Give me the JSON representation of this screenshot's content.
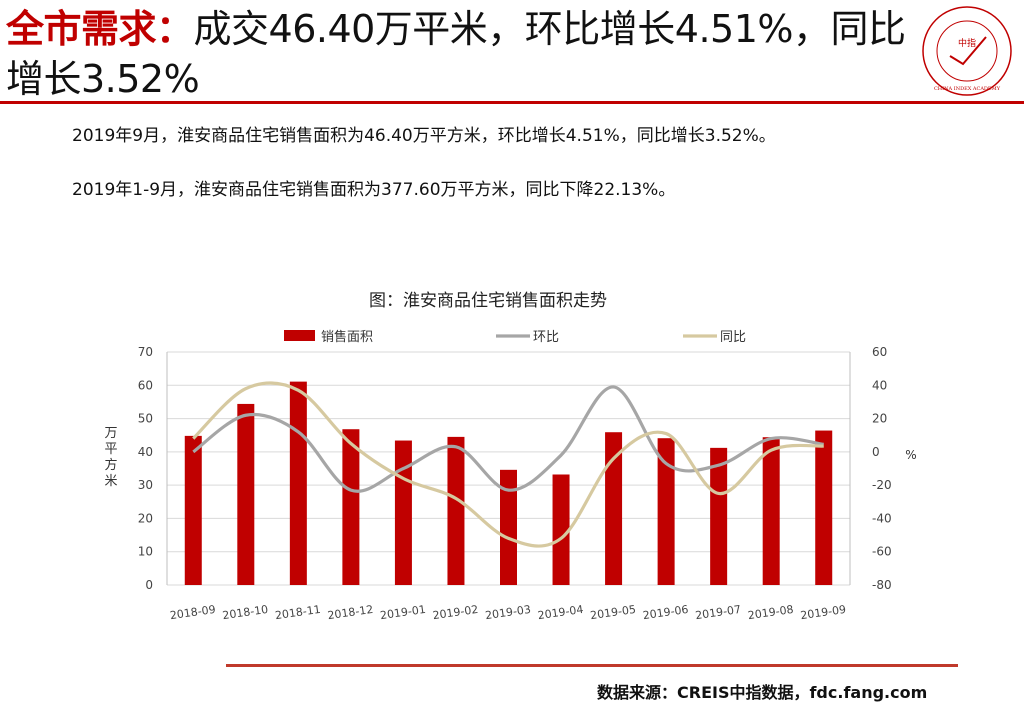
{
  "header": {
    "lead": "全市需求：",
    "rest": "成交46.40万平米，环比增长4.51%，同比增长3.52%"
  },
  "logo": {
    "center_text": "中指",
    "ring_text": "CHINA INDEX ACADEMY"
  },
  "body": {
    "p1": "2019年9月，淮安商品住宅销售面积为46.40万平方米，环比增长4.51%，同比增长3.52%。",
    "p2": "2019年1-9月，淮安商品住宅销售面积为377.60万平方米，同比下降22.13%。"
  },
  "footer": {
    "source": "数据来源：CREIS中指数据，fdc.fang.com"
  },
  "colors": {
    "accent": "#c00000",
    "bar": "#c00000",
    "mom": "#a6a6a6",
    "yoy": "#d6c9a0"
  },
  "chart_data": {
    "type": "bar+line",
    "title": "图：淮安商品住宅销售面积走势",
    "categories": [
      "2018-09",
      "2018-10",
      "2018-11",
      "2018-12",
      "2019-01",
      "2019-02",
      "2019-03",
      "2019-04",
      "2019-05",
      "2019-06",
      "2019-07",
      "2019-08",
      "2019-09"
    ],
    "series": [
      {
        "name": "销售面积",
        "kind": "bar",
        "axis": "left",
        "values": [
          44.8,
          54.4,
          61.1,
          46.8,
          43.4,
          44.5,
          34.6,
          33.2,
          45.9,
          44.1,
          41.2,
          44.4,
          46.4
        ]
      },
      {
        "name": "环比",
        "kind": "line",
        "axis": "right",
        "values": [
          0,
          22,
          12,
          -23,
          -10,
          3,
          -23,
          -2,
          39,
          -7,
          -8,
          8,
          4.5
        ]
      },
      {
        "name": "同比",
        "kind": "line",
        "axis": "right",
        "values": [
          8,
          38,
          37,
          5,
          -16,
          -28,
          -52,
          -52,
          -4,
          11,
          -25,
          1,
          3.5
        ]
      }
    ],
    "ylabel": "万平方米",
    "y2label": "%",
    "ylim": [
      0,
      70
    ],
    "yticks": [
      "0",
      "10",
      "20",
      "30",
      "40",
      "50",
      "60",
      "70"
    ],
    "y2lim": [
      -80,
      60
    ],
    "y2ticks": [
      "-80",
      "-60",
      "-40",
      "-20",
      "0",
      "20",
      "40",
      "60"
    ],
    "legend": "top"
  }
}
